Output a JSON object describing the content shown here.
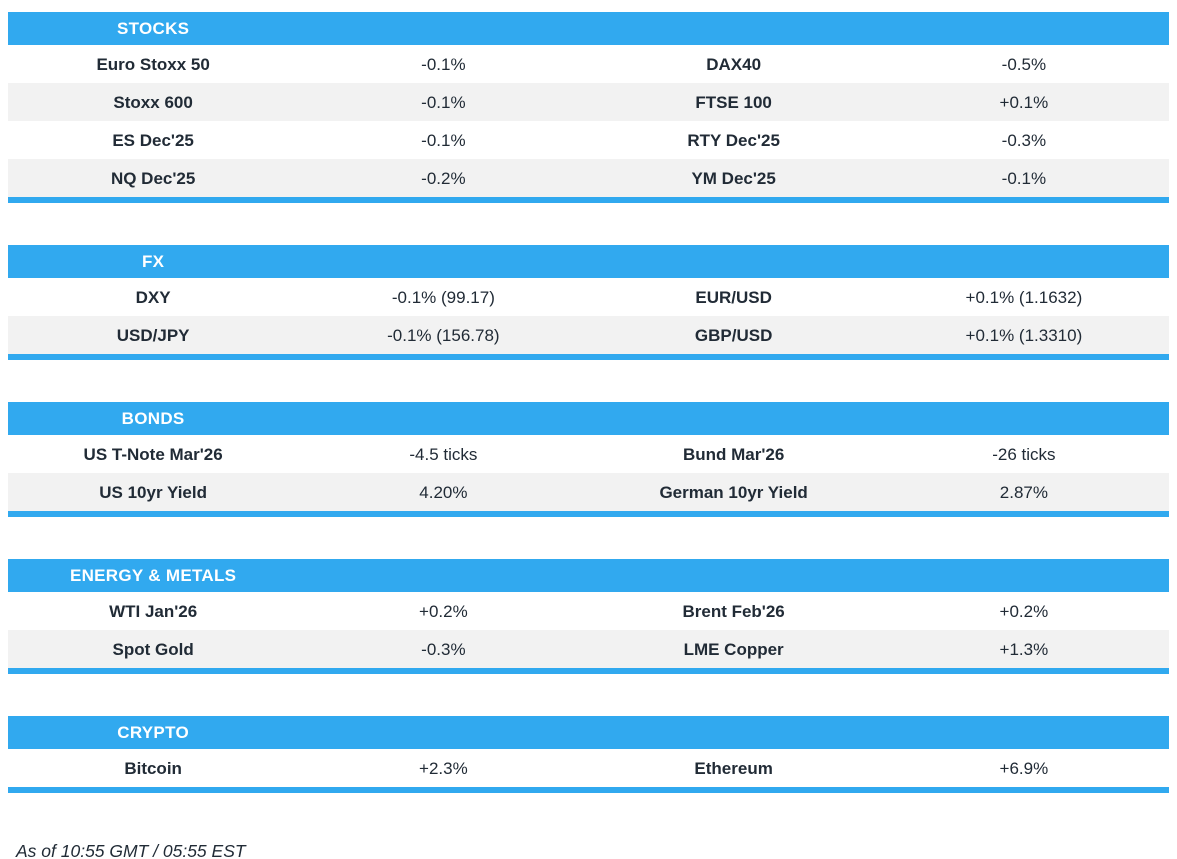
{
  "theme": {
    "accent": "#31A9EF",
    "row_alt": "#F2F2F2",
    "text": "#212B36",
    "header_text": "#FFFFFF"
  },
  "chart_data": [
    {
      "type": "table",
      "title": "STOCKS",
      "columns": [
        "instrument",
        "change",
        "instrument",
        "change"
      ],
      "rows": [
        [
          "Euro Stoxx 50",
          "-0.1%",
          "DAX40",
          "-0.5%"
        ],
        [
          "Stoxx 600",
          "-0.1%",
          "FTSE 100",
          "+0.1%"
        ],
        [
          "ES Dec'25",
          "-0.1%",
          "RTY Dec'25",
          "-0.3%"
        ],
        [
          "NQ Dec'25",
          "-0.2%",
          "YM Dec'25",
          "-0.1%"
        ]
      ]
    },
    {
      "type": "table",
      "title": "FX",
      "columns": [
        "instrument",
        "change",
        "instrument",
        "change"
      ],
      "rows": [
        [
          "DXY",
          "-0.1% (99.17)",
          "EUR/USD",
          "+0.1% (1.1632)"
        ],
        [
          "USD/JPY",
          "-0.1% (156.78)",
          "GBP/USD",
          "+0.1% (1.3310)"
        ]
      ]
    },
    {
      "type": "table",
      "title": "BONDS",
      "columns": [
        "instrument",
        "change",
        "instrument",
        "change"
      ],
      "rows": [
        [
          "US T-Note Mar'26",
          "-4.5 ticks",
          "Bund Mar'26",
          "-26 ticks"
        ],
        [
          "US 10yr Yield",
          "4.20%",
          "German 10yr Yield",
          "2.87%"
        ]
      ]
    },
    {
      "type": "table",
      "title": "ENERGY & METALS",
      "columns": [
        "instrument",
        "change",
        "instrument",
        "change"
      ],
      "rows": [
        [
          "WTI Jan'26",
          "+0.2%",
          "Brent Feb'26",
          "+0.2%"
        ],
        [
          "Spot Gold",
          "-0.3%",
          "LME Copper",
          "+1.3%"
        ]
      ]
    },
    {
      "type": "table",
      "title": "CRYPTO",
      "columns": [
        "instrument",
        "change",
        "instrument",
        "change"
      ],
      "rows": [
        [
          "Bitcoin",
          "+2.3%",
          "Ethereum",
          "+6.9%"
        ]
      ]
    }
  ],
  "footer": {
    "as_of": "As of 10:55 GMT / 05:55 EST"
  }
}
